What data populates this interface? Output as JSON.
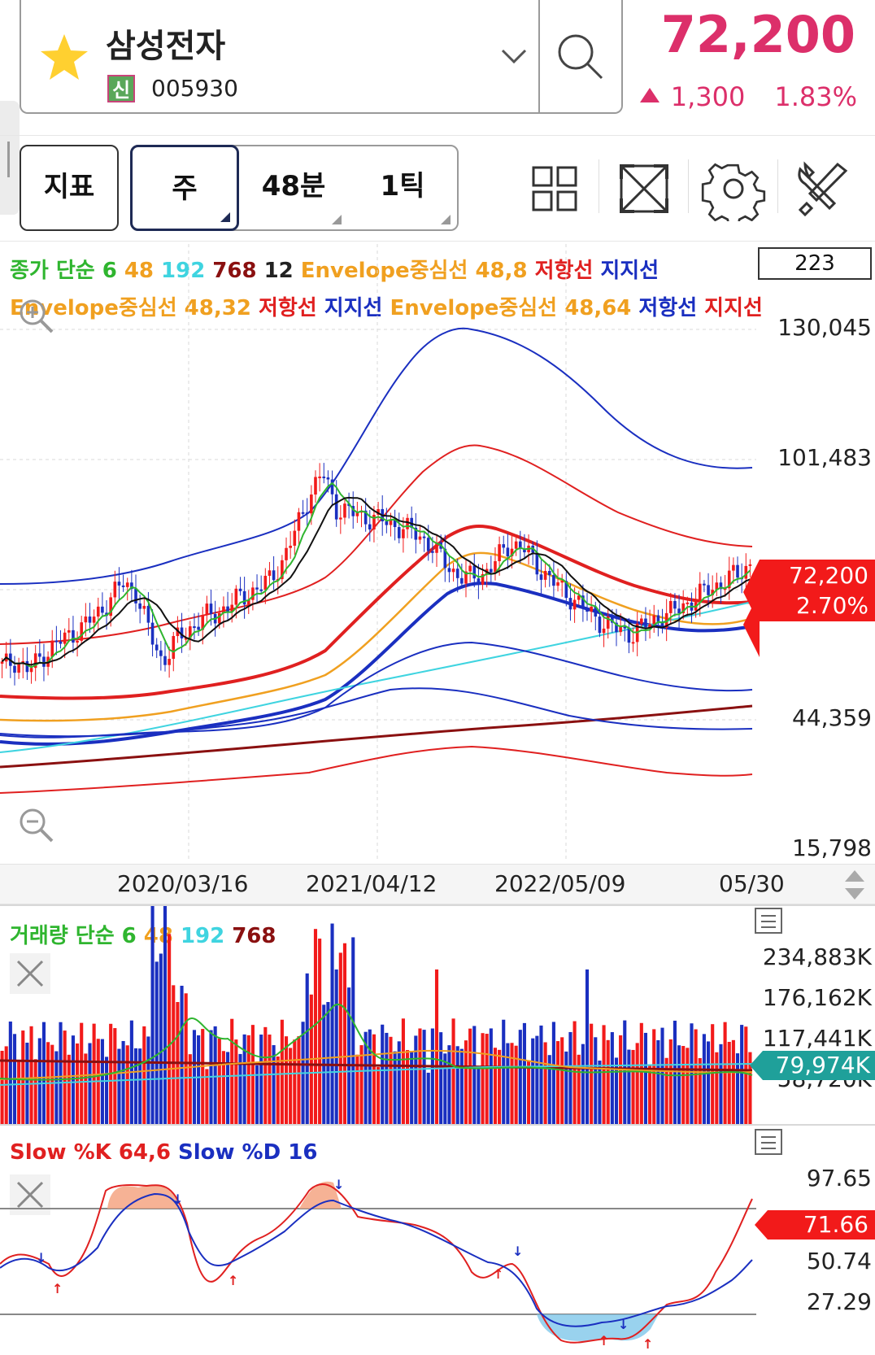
{
  "header": {
    "stock_name": "삼성전자",
    "credit_badge": "신",
    "stock_code": "005930",
    "price": "72,200",
    "change_value": "1,300",
    "change_percent": "1.83%",
    "up_color": "#dc2f6a"
  },
  "toolbar": {
    "indicator_label": "지표",
    "periods": [
      {
        "label": "주",
        "active": true
      },
      {
        "label": "48분",
        "active": false
      },
      {
        "label": "1틱",
        "active": false
      }
    ],
    "icons": [
      "layout-grid-icon",
      "fullscreen-icon",
      "gear-icon",
      "tools-icon"
    ]
  },
  "main_chart": {
    "legend_line1": [
      {
        "text": "종가 단순",
        "color": "green"
      },
      {
        "text": "6",
        "color": "green"
      },
      {
        "text": "48",
        "color": "orange"
      },
      {
        "text": "192",
        "color": "cyan"
      },
      {
        "text": "768",
        "color": "maroon"
      },
      {
        "text": "12",
        "color": "black"
      },
      {
        "text": "Envelope중심선 48,8",
        "color": "orange"
      },
      {
        "text": "저항선",
        "color": "red"
      },
      {
        "text": "지지선",
        "color": "blue"
      }
    ],
    "legend_line2": [
      {
        "text": "Envelope중심선 48,32",
        "color": "orange"
      },
      {
        "text": "저항선",
        "color": "red"
      },
      {
        "text": "지지선",
        "color": "blue"
      },
      {
        "text": "Envelope중심선 48,64",
        "color": "orange"
      },
      {
        "text": "저항선",
        "color": "blue"
      },
      {
        "text": "지지선",
        "color": "red"
      }
    ],
    "visible_count": "223",
    "y_ticks": [
      "130,045",
      "101,483",
      "72,200",
      "44,359",
      "15,798"
    ],
    "current_price_tag": "72,200",
    "current_change_tag": "2.70%",
    "x_ticks": [
      "2020/03/16",
      "2021/04/12",
      "2022/05/09",
      "05/30"
    ]
  },
  "volume_panel": {
    "legend": [
      {
        "text": "거래량 단순",
        "color": "green"
      },
      {
        "text": "6",
        "color": "green"
      },
      {
        "text": "48",
        "color": "orange"
      },
      {
        "text": "192",
        "color": "cyan"
      },
      {
        "text": "768",
        "color": "maroon"
      }
    ],
    "y_ticks": [
      "234,883K",
      "176,162K",
      "117,441K",
      "58,720K"
    ],
    "current_tag": "79,974K"
  },
  "stoch_panel": {
    "legend": [
      {
        "text": "Slow %K 64,6",
        "color": "red"
      },
      {
        "text": "Slow %D 16",
        "color": "blue"
      }
    ],
    "y_ticks": [
      "97.65",
      "50.74",
      "27.29"
    ],
    "current_tag": "71.66"
  },
  "chart_data": {
    "type": "candlestick",
    "symbol": "005930",
    "interval": "weekly",
    "x_ticks": [
      "2020/03/16",
      "2021/04/12",
      "2022/05/09",
      "05/30"
    ],
    "y_range": [
      15798,
      130045
    ],
    "close_path": [
      49000,
      50500,
      48000,
      51500,
      54000,
      56000,
      58000,
      60500,
      64000,
      68000,
      66000,
      57000,
      50000,
      55000,
      57500,
      60000,
      61000,
      63000,
      65000,
      66500,
      68500,
      73000,
      80000,
      88000,
      93000,
      85000,
      84000,
      83000,
      82500,
      81500,
      80500,
      79000,
      77000,
      73000,
      70000,
      69000,
      70000,
      73000,
      77000,
      76000,
      72000,
      69000,
      66000,
      64000,
      61000,
      59000,
      57500,
      56500,
      58000,
      60000,
      61000,
      63000,
      64500,
      67000,
      68000,
      70000,
      72200
    ],
    "last_close": 72200,
    "last_change_pct": 2.7
  }
}
